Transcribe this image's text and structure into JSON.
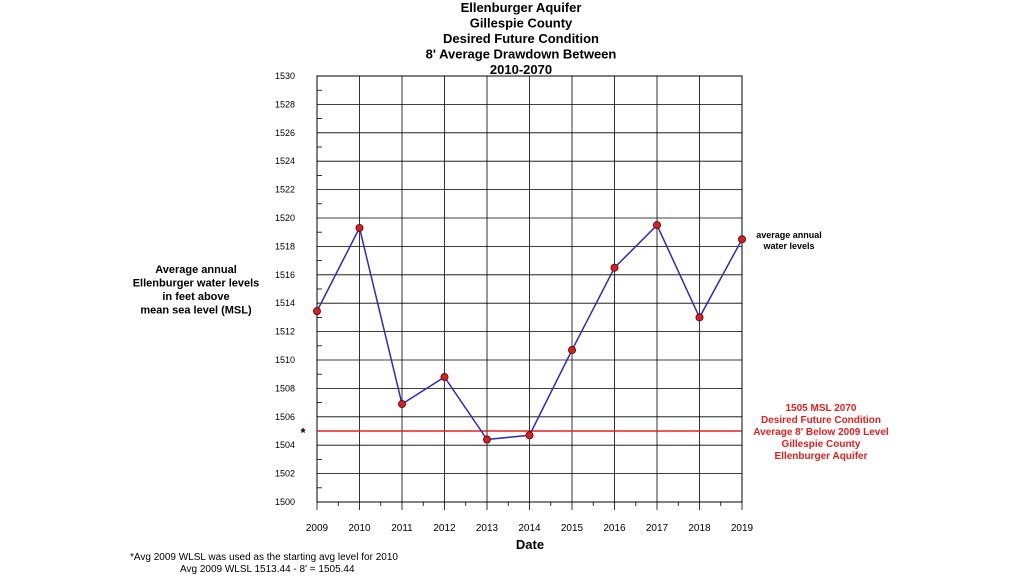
{
  "chart_data": {
    "type": "line",
    "title_lines": [
      "Ellenburger Aquifer",
      "Gillespie County",
      "Desired Future Condition",
      "8' Average Drawdown Between",
      "2010-2070"
    ],
    "xlabel": "Date",
    "ylabel_lines": [
      "Average annual",
      "Ellenburger water levels",
      "in feet above",
      "mean sea level (MSL)"
    ],
    "x": [
      2009,
      2010,
      2011,
      2012,
      2013,
      2014,
      2015,
      2016,
      2017,
      2018,
      2019
    ],
    "x_tick_labels": [
      "2009",
      "2010",
      "2011",
      "2012",
      "2013",
      "2014",
      "2015",
      "2016",
      "2017",
      "2018",
      "2019"
    ],
    "y_tick_labels": [
      "1500",
      "1502",
      "1504",
      "1506",
      "1508",
      "1510",
      "1512",
      "1514",
      "1516",
      "1518",
      "1520",
      "1522",
      "1524",
      "1526",
      "1528",
      "1530"
    ],
    "ylim": [
      1500,
      1530
    ],
    "xlim": [
      2009,
      2019
    ],
    "grid": true,
    "series": [
      {
        "name": "average annual water levels",
        "label_lines": [
          "average annual",
          "water levels"
        ],
        "color": "#2b2bbf",
        "marker_color": "#d42020",
        "values": [
          1513.44,
          1519.3,
          1506.9,
          1508.8,
          1504.4,
          1504.7,
          1510.7,
          1516.5,
          1519.5,
          1513.0,
          1518.5
        ]
      }
    ],
    "reference_line": {
      "value": 1505,
      "color": "#e02020",
      "marker": "*",
      "label_lines": [
        "1505 MSL 2070",
        "Desired Future Condition",
        "Average 8' Below 2009 Level",
        "Gillespie County",
        "Ellenburger Aquifer"
      ]
    },
    "footnote_lines": [
      "*Avg 2009 WLSL was used as the starting avg level for 2010",
      "Avg 2009 WLSL 1513.44 - 8' = 1505.44"
    ]
  }
}
